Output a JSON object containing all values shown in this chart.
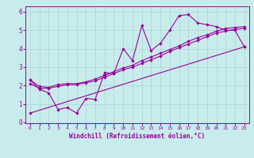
{
  "bg_color": "#c8ecec",
  "line_color": "#990099",
  "grid_color": "#b0d8d8",
  "xlabel": "Windchill (Refroidissement éolien,°C)",
  "xlim": [
    -0.5,
    23.5
  ],
  "ylim": [
    -0.05,
    6.3
  ],
  "xticks": [
    0,
    1,
    2,
    3,
    4,
    5,
    6,
    7,
    8,
    9,
    10,
    11,
    12,
    13,
    14,
    15,
    16,
    17,
    18,
    19,
    20,
    21,
    22,
    23
  ],
  "yticks": [
    0,
    1,
    2,
    3,
    4,
    5,
    6
  ],
  "line1_x": [
    0,
    1,
    2,
    3,
    4,
    5,
    6,
    7,
    8,
    9,
    10,
    11,
    12,
    13,
    14,
    15,
    16,
    17,
    18,
    19,
    20,
    21,
    22,
    23
  ],
  "line1_y": [
    2.3,
    1.8,
    1.6,
    0.7,
    0.8,
    0.5,
    1.3,
    1.25,
    2.7,
    2.65,
    4.0,
    3.35,
    5.25,
    3.9,
    4.3,
    5.0,
    5.8,
    5.85,
    5.4,
    5.3,
    5.2,
    5.0,
    5.0,
    4.1
  ],
  "line2_x": [
    0,
    1,
    2,
    3,
    4,
    5,
    6,
    7,
    8,
    9,
    10,
    11,
    12,
    13,
    14,
    15,
    16,
    17,
    18,
    19,
    20,
    21,
    22,
    23
  ],
  "line2_y": [
    2.3,
    1.95,
    1.9,
    2.05,
    2.1,
    2.1,
    2.2,
    2.35,
    2.55,
    2.75,
    2.95,
    3.1,
    3.35,
    3.55,
    3.75,
    3.95,
    4.15,
    4.4,
    4.6,
    4.75,
    4.95,
    5.1,
    5.15,
    5.2
  ],
  "line3_x": [
    0,
    1,
    2,
    3,
    4,
    5,
    6,
    7,
    8,
    9,
    10,
    11,
    12,
    13,
    14,
    15,
    16,
    17,
    18,
    19,
    20,
    21,
    22,
    23
  ],
  "line3_y": [
    2.1,
    1.85,
    1.85,
    1.95,
    2.05,
    2.05,
    2.15,
    2.25,
    2.45,
    2.65,
    2.85,
    3.0,
    3.2,
    3.4,
    3.6,
    3.85,
    4.05,
    4.25,
    4.45,
    4.65,
    4.85,
    4.95,
    5.05,
    5.1
  ],
  "line4_x": [
    0,
    23
  ],
  "line4_y": [
    0.5,
    4.1
  ]
}
